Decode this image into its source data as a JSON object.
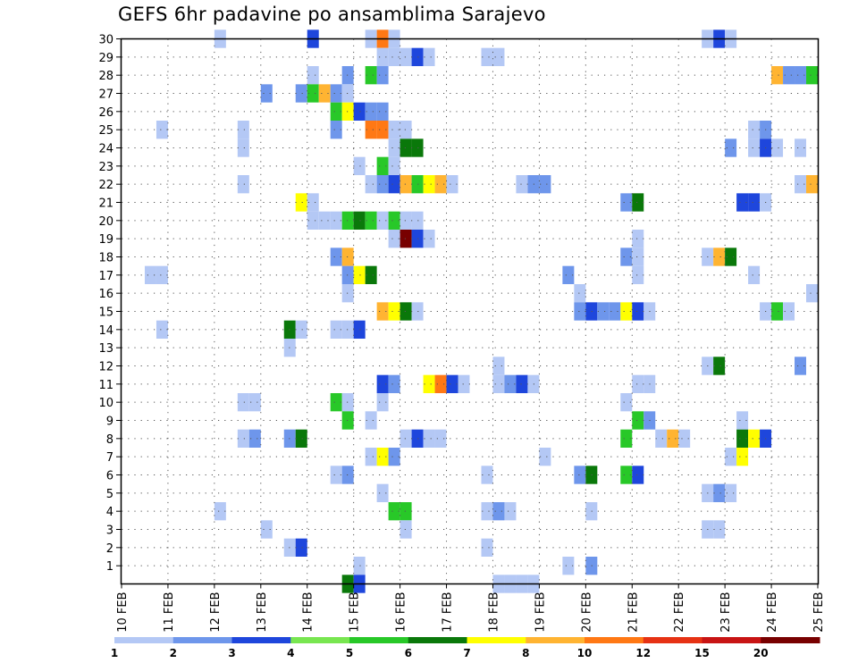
{
  "chart_data": {
    "type": "heatmap",
    "title": "GEFS 6hr padavine po ansamblima Sarajevo",
    "x_ticks": [
      "10 FEB",
      "11 FEB",
      "12 FEB",
      "13 FEB",
      "14 FEB",
      "15 FEB",
      "16 FEB",
      "17 FEB",
      "18 FEB",
      "19 FEB",
      "20 FEB",
      "21 FEB",
      "22 FEB",
      "23 FEB",
      "24 FEB",
      "25 FEB"
    ],
    "y_ticks": [
      "1",
      "2",
      "3",
      "4",
      "5",
      "6",
      "7",
      "8",
      "9",
      "10",
      "11",
      "12",
      "13",
      "14",
      "15",
      "16",
      "17",
      "18",
      "19",
      "20",
      "21",
      "22",
      "23",
      "24",
      "25",
      "26",
      "27",
      "28",
      "29",
      "30"
    ],
    "x_range": [
      "10 FEB 00h",
      "25 FEB 00h"
    ],
    "y_range": [
      0,
      30
    ],
    "time_step_hours": 6,
    "grid": "dotted",
    "colorbar": {
      "labels": [
        "1",
        "2",
        "3",
        "4",
        "5",
        "6",
        "7",
        "8",
        "10",
        "12",
        "15",
        "20"
      ],
      "colors": [
        "#b4c8f5",
        "#6e96eb",
        "#1e46dc",
        "#78e650",
        "#28c828",
        "#0a780a",
        "#ffff00",
        "#ffb432",
        "#ff7814",
        "#e63214",
        "#c81414",
        "#780000"
      ]
    },
    "cells": [
      [
        30,
        "12 FEB 00h",
        1
      ],
      [
        30,
        "14 FEB 00h",
        3
      ],
      [
        30,
        "15 FEB 06h",
        1
      ],
      [
        30,
        "15 FEB 12h",
        10
      ],
      [
        30,
        "15 FEB 18h",
        1
      ],
      [
        30,
        "22 FEB 12h",
        1
      ],
      [
        30,
        "22 FEB 18h",
        3
      ],
      [
        30,
        "23 FEB 00h",
        1
      ],
      [
        29,
        "15 FEB 12h",
        1
      ],
      [
        29,
        "15 FEB 18h",
        1
      ],
      [
        29,
        "16 FEB 00h",
        1
      ],
      [
        29,
        "16 FEB 06h",
        3
      ],
      [
        29,
        "16 FEB 12h",
        1
      ],
      [
        29,
        "17 FEB 18h",
        1
      ],
      [
        29,
        "18 FEB 00h",
        1
      ],
      [
        28,
        "14 FEB 00h",
        1
      ],
      [
        28,
        "14 FEB 18h",
        2
      ],
      [
        28,
        "15 FEB 06h",
        5
      ],
      [
        28,
        "15 FEB 12h",
        2
      ],
      [
        28,
        "24 FEB 00h",
        8
      ],
      [
        28,
        "24 FEB 06h",
        2
      ],
      [
        28,
        "24 FEB 12h",
        2
      ],
      [
        28,
        "24 FEB 18h",
        5
      ],
      [
        27,
        "13 FEB 00h",
        2
      ],
      [
        27,
        "13 FEB 18h",
        2
      ],
      [
        27,
        "14 FEB 00h",
        5
      ],
      [
        27,
        "14 FEB 06h",
        8
      ],
      [
        27,
        "14 FEB 12h",
        2
      ],
      [
        27,
        "14 FEB 18h",
        1
      ],
      [
        26,
        "14 FEB 12h",
        5
      ],
      [
        26,
        "14 FEB 18h",
        7
      ],
      [
        26,
        "15 FEB 00h",
        3
      ],
      [
        26,
        "15 FEB 06h",
        2
      ],
      [
        26,
        "15 FEB 12h",
        2
      ],
      [
        25,
        "10 FEB 18h",
        1
      ],
      [
        25,
        "12 FEB 12h",
        1
      ],
      [
        25,
        "14 FEB 12h",
        2
      ],
      [
        25,
        "15 FEB 06h",
        10
      ],
      [
        25,
        "15 FEB 12h",
        10
      ],
      [
        25,
        "15 FEB 18h",
        1
      ],
      [
        25,
        "16 FEB 00h",
        1
      ],
      [
        25,
        "23 FEB 12h",
        1
      ],
      [
        25,
        "23 FEB 18h",
        2
      ],
      [
        24,
        "12 FEB 12h",
        1
      ],
      [
        24,
        "15 FEB 18h",
        1
      ],
      [
        24,
        "16 FEB 00h",
        6
      ],
      [
        24,
        "16 FEB 06h",
        6
      ],
      [
        24,
        "23 FEB 00h",
        2
      ],
      [
        24,
        "23 FEB 12h",
        1
      ],
      [
        24,
        "23 FEB 18h",
        3
      ],
      [
        24,
        "24 FEB 00h",
        1
      ],
      [
        24,
        "24 FEB 12h",
        1
      ],
      [
        23,
        "15 FEB 00h",
        1
      ],
      [
        23,
        "15 FEB 12h",
        5
      ],
      [
        23,
        "15 FEB 18h",
        1
      ],
      [
        22,
        "12 FEB 12h",
        1
      ],
      [
        22,
        "15 FEB 06h",
        1
      ],
      [
        22,
        "15 FEB 12h",
        2
      ],
      [
        22,
        "15 FEB 18h",
        3
      ],
      [
        22,
        "16 FEB 00h",
        8
      ],
      [
        22,
        "16 FEB 06h",
        5
      ],
      [
        22,
        "16 FEB 12h",
        7
      ],
      [
        22,
        "16 FEB 18h",
        8
      ],
      [
        22,
        "17 FEB 00h",
        1
      ],
      [
        22,
        "18 FEB 12h",
        1
      ],
      [
        22,
        "18 FEB 18h",
        2
      ],
      [
        22,
        "19 FEB 00h",
        2
      ],
      [
        22,
        "24 FEB 12h",
        1
      ],
      [
        22,
        "24 FEB 18h",
        8
      ],
      [
        21,
        "13 FEB 18h",
        7
      ],
      [
        21,
        "14 FEB 00h",
        1
      ],
      [
        21,
        "20 FEB 18h",
        2
      ],
      [
        21,
        "21 FEB 00h",
        6
      ],
      [
        21,
        "23 FEB 06h",
        3
      ],
      [
        21,
        "23 FEB 12h",
        3
      ],
      [
        21,
        "23 FEB 18h",
        1
      ],
      [
        20,
        "14 FEB 00h",
        1
      ],
      [
        20,
        "14 FEB 06h",
        1
      ],
      [
        20,
        "14 FEB 12h",
        1
      ],
      [
        20,
        "14 FEB 18h",
        5
      ],
      [
        20,
        "15 FEB 00h",
        6
      ],
      [
        20,
        "15 FEB 06h",
        5
      ],
      [
        20,
        "15 FEB 12h",
        1
      ],
      [
        20,
        "15 FEB 18h",
        5
      ],
      [
        20,
        "16 FEB 00h",
        1
      ],
      [
        20,
        "16 FEB 06h",
        1
      ],
      [
        19,
        "15 FEB 18h",
        1
      ],
      [
        19,
        "16 FEB 00h",
        20
      ],
      [
        19,
        "16 FEB 06h",
        3
      ],
      [
        19,
        "16 FEB 12h",
        1
      ],
      [
        19,
        "21 FEB 00h",
        1
      ],
      [
        18,
        "14 FEB 12h",
        2
      ],
      [
        18,
        "14 FEB 18h",
        8
      ],
      [
        18,
        "20 FEB 18h",
        2
      ],
      [
        18,
        "21 FEB 00h",
        1
      ],
      [
        18,
        "22 FEB 12h",
        1
      ],
      [
        18,
        "22 FEB 18h",
        8
      ],
      [
        18,
        "23 FEB 00h",
        6
      ],
      [
        17,
        "10 FEB 12h",
        1
      ],
      [
        17,
        "10 FEB 18h",
        1
      ],
      [
        17,
        "14 FEB 18h",
        2
      ],
      [
        17,
        "15 FEB 00h",
        7
      ],
      [
        17,
        "15 FEB 06h",
        6
      ],
      [
        17,
        "19 FEB 12h",
        2
      ],
      [
        17,
        "21 FEB 00h",
        1
      ],
      [
        17,
        "23 FEB 12h",
        1
      ],
      [
        16,
        "14 FEB 18h",
        1
      ],
      [
        16,
        "19 FEB 18h",
        1
      ],
      [
        16,
        "24 FEB 18h",
        1
      ],
      [
        15,
        "15 FEB 12h",
        8
      ],
      [
        15,
        "15 FEB 18h",
        7
      ],
      [
        15,
        "16 FEB 00h",
        6
      ],
      [
        15,
        "16 FEB 06h",
        1
      ],
      [
        15,
        "19 FEB 18h",
        2
      ],
      [
        15,
        "20 FEB 00h",
        3
      ],
      [
        15,
        "20 FEB 06h",
        2
      ],
      [
        15,
        "20 FEB 12h",
        2
      ],
      [
        15,
        "20 FEB 18h",
        7
      ],
      [
        15,
        "21 FEB 00h",
        3
      ],
      [
        15,
        "21 FEB 06h",
        1
      ],
      [
        15,
        "23 FEB 18h",
        1
      ],
      [
        15,
        "24 FEB 00h",
        5
      ],
      [
        15,
        "24 FEB 06h",
        1
      ],
      [
        14,
        "10 FEB 18h",
        1
      ],
      [
        14,
        "13 FEB 12h",
        6
      ],
      [
        14,
        "13 FEB 18h",
        1
      ],
      [
        14,
        "14 FEB 12h",
        1
      ],
      [
        14,
        "14 FEB 18h",
        1
      ],
      [
        14,
        "15 FEB 00h",
        3
      ],
      [
        13,
        "13 FEB 12h",
        1
      ],
      [
        12,
        "18 FEB 00h",
        1
      ],
      [
        12,
        "22 FEB 12h",
        1
      ],
      [
        12,
        "22 FEB 18h",
        6
      ],
      [
        12,
        "24 FEB 12h",
        2
      ],
      [
        11,
        "15 FEB 12h",
        3
      ],
      [
        11,
        "15 FEB 18h",
        2
      ],
      [
        11,
        "16 FEB 12h",
        7
      ],
      [
        11,
        "16 FEB 18h",
        10
      ],
      [
        11,
        "17 FEB 00h",
        3
      ],
      [
        11,
        "17 FEB 06h",
        1
      ],
      [
        11,
        "18 FEB 00h",
        1
      ],
      [
        11,
        "18 FEB 06h",
        2
      ],
      [
        11,
        "18 FEB 12h",
        3
      ],
      [
        11,
        "18 FEB 18h",
        1
      ],
      [
        11,
        "21 FEB 00h",
        1
      ],
      [
        11,
        "21 FEB 06h",
        1
      ],
      [
        10,
        "12 FEB 12h",
        1
      ],
      [
        10,
        "12 FEB 18h",
        1
      ],
      [
        10,
        "14 FEB 12h",
        5
      ],
      [
        10,
        "14 FEB 18h",
        1
      ],
      [
        10,
        "15 FEB 12h",
        1
      ],
      [
        10,
        "20 FEB 18h",
        1
      ],
      [
        9,
        "14 FEB 18h",
        5
      ],
      [
        9,
        "15 FEB 06h",
        1
      ],
      [
        9,
        "21 FEB 00h",
        5
      ],
      [
        9,
        "21 FEB 06h",
        2
      ],
      [
        9,
        "23 FEB 06h",
        1
      ],
      [
        8,
        "12 FEB 12h",
        1
      ],
      [
        8,
        "12 FEB 18h",
        2
      ],
      [
        8,
        "13 FEB 12h",
        2
      ],
      [
        8,
        "13 FEB 18h",
        6
      ],
      [
        8,
        "16 FEB 00h",
        1
      ],
      [
        8,
        "16 FEB 06h",
        3
      ],
      [
        8,
        "16 FEB 12h",
        1
      ],
      [
        8,
        "16 FEB 18h",
        1
      ],
      [
        8,
        "20 FEB 18h",
        5
      ],
      [
        8,
        "21 FEB 12h",
        1
      ],
      [
        8,
        "21 FEB 18h",
        8
      ],
      [
        8,
        "22 FEB 00h",
        1
      ],
      [
        8,
        "23 FEB 06h",
        6
      ],
      [
        8,
        "23 FEB 12h",
        7
      ],
      [
        8,
        "23 FEB 18h",
        3
      ],
      [
        7,
        "15 FEB 06h",
        1
      ],
      [
        7,
        "15 FEB 12h",
        7
      ],
      [
        7,
        "15 FEB 18h",
        2
      ],
      [
        7,
        "19 FEB 00h",
        1
      ],
      [
        7,
        "23 FEB 00h",
        1
      ],
      [
        7,
        "23 FEB 06h",
        7
      ],
      [
        6,
        "14 FEB 12h",
        1
      ],
      [
        6,
        "14 FEB 18h",
        2
      ],
      [
        6,
        "17 FEB 18h",
        1
      ],
      [
        6,
        "19 FEB 18h",
        2
      ],
      [
        6,
        "20 FEB 00h",
        6
      ],
      [
        6,
        "20 FEB 18h",
        5
      ],
      [
        6,
        "21 FEB 00h",
        3
      ],
      [
        5,
        "15 FEB 12h",
        1
      ],
      [
        5,
        "22 FEB 12h",
        1
      ],
      [
        5,
        "22 FEB 18h",
        2
      ],
      [
        5,
        "23 FEB 00h",
        1
      ],
      [
        4,
        "12 FEB 00h",
        1
      ],
      [
        4,
        "15 FEB 18h",
        5
      ],
      [
        4,
        "16 FEB 00h",
        5
      ],
      [
        4,
        "17 FEB 18h",
        1
      ],
      [
        4,
        "18 FEB 00h",
        2
      ],
      [
        4,
        "18 FEB 06h",
        1
      ],
      [
        4,
        "20 FEB 00h",
        1
      ],
      [
        3,
        "13 FEB 00h",
        1
      ],
      [
        3,
        "16 FEB 00h",
        1
      ],
      [
        3,
        "22 FEB 12h",
        1
      ],
      [
        3,
        "22 FEB 18h",
        1
      ],
      [
        2,
        "13 FEB 12h",
        1
      ],
      [
        2,
        "13 FEB 18h",
        3
      ],
      [
        2,
        "17 FEB 18h",
        1
      ],
      [
        1,
        "15 FEB 00h",
        1
      ],
      [
        1,
        "19 FEB 12h",
        1
      ],
      [
        1,
        "20 FEB 00h",
        2
      ],
      [
        0,
        "14 FEB 18h",
        6
      ],
      [
        0,
        "15 FEB 00h",
        3
      ],
      [
        0,
        "18 FEB 00h",
        1
      ],
      [
        0,
        "18 FEB 06h",
        1
      ],
      [
        0,
        "18 FEB 12h",
        1
      ],
      [
        0,
        "18 FEB 18h",
        1
      ]
    ]
  }
}
